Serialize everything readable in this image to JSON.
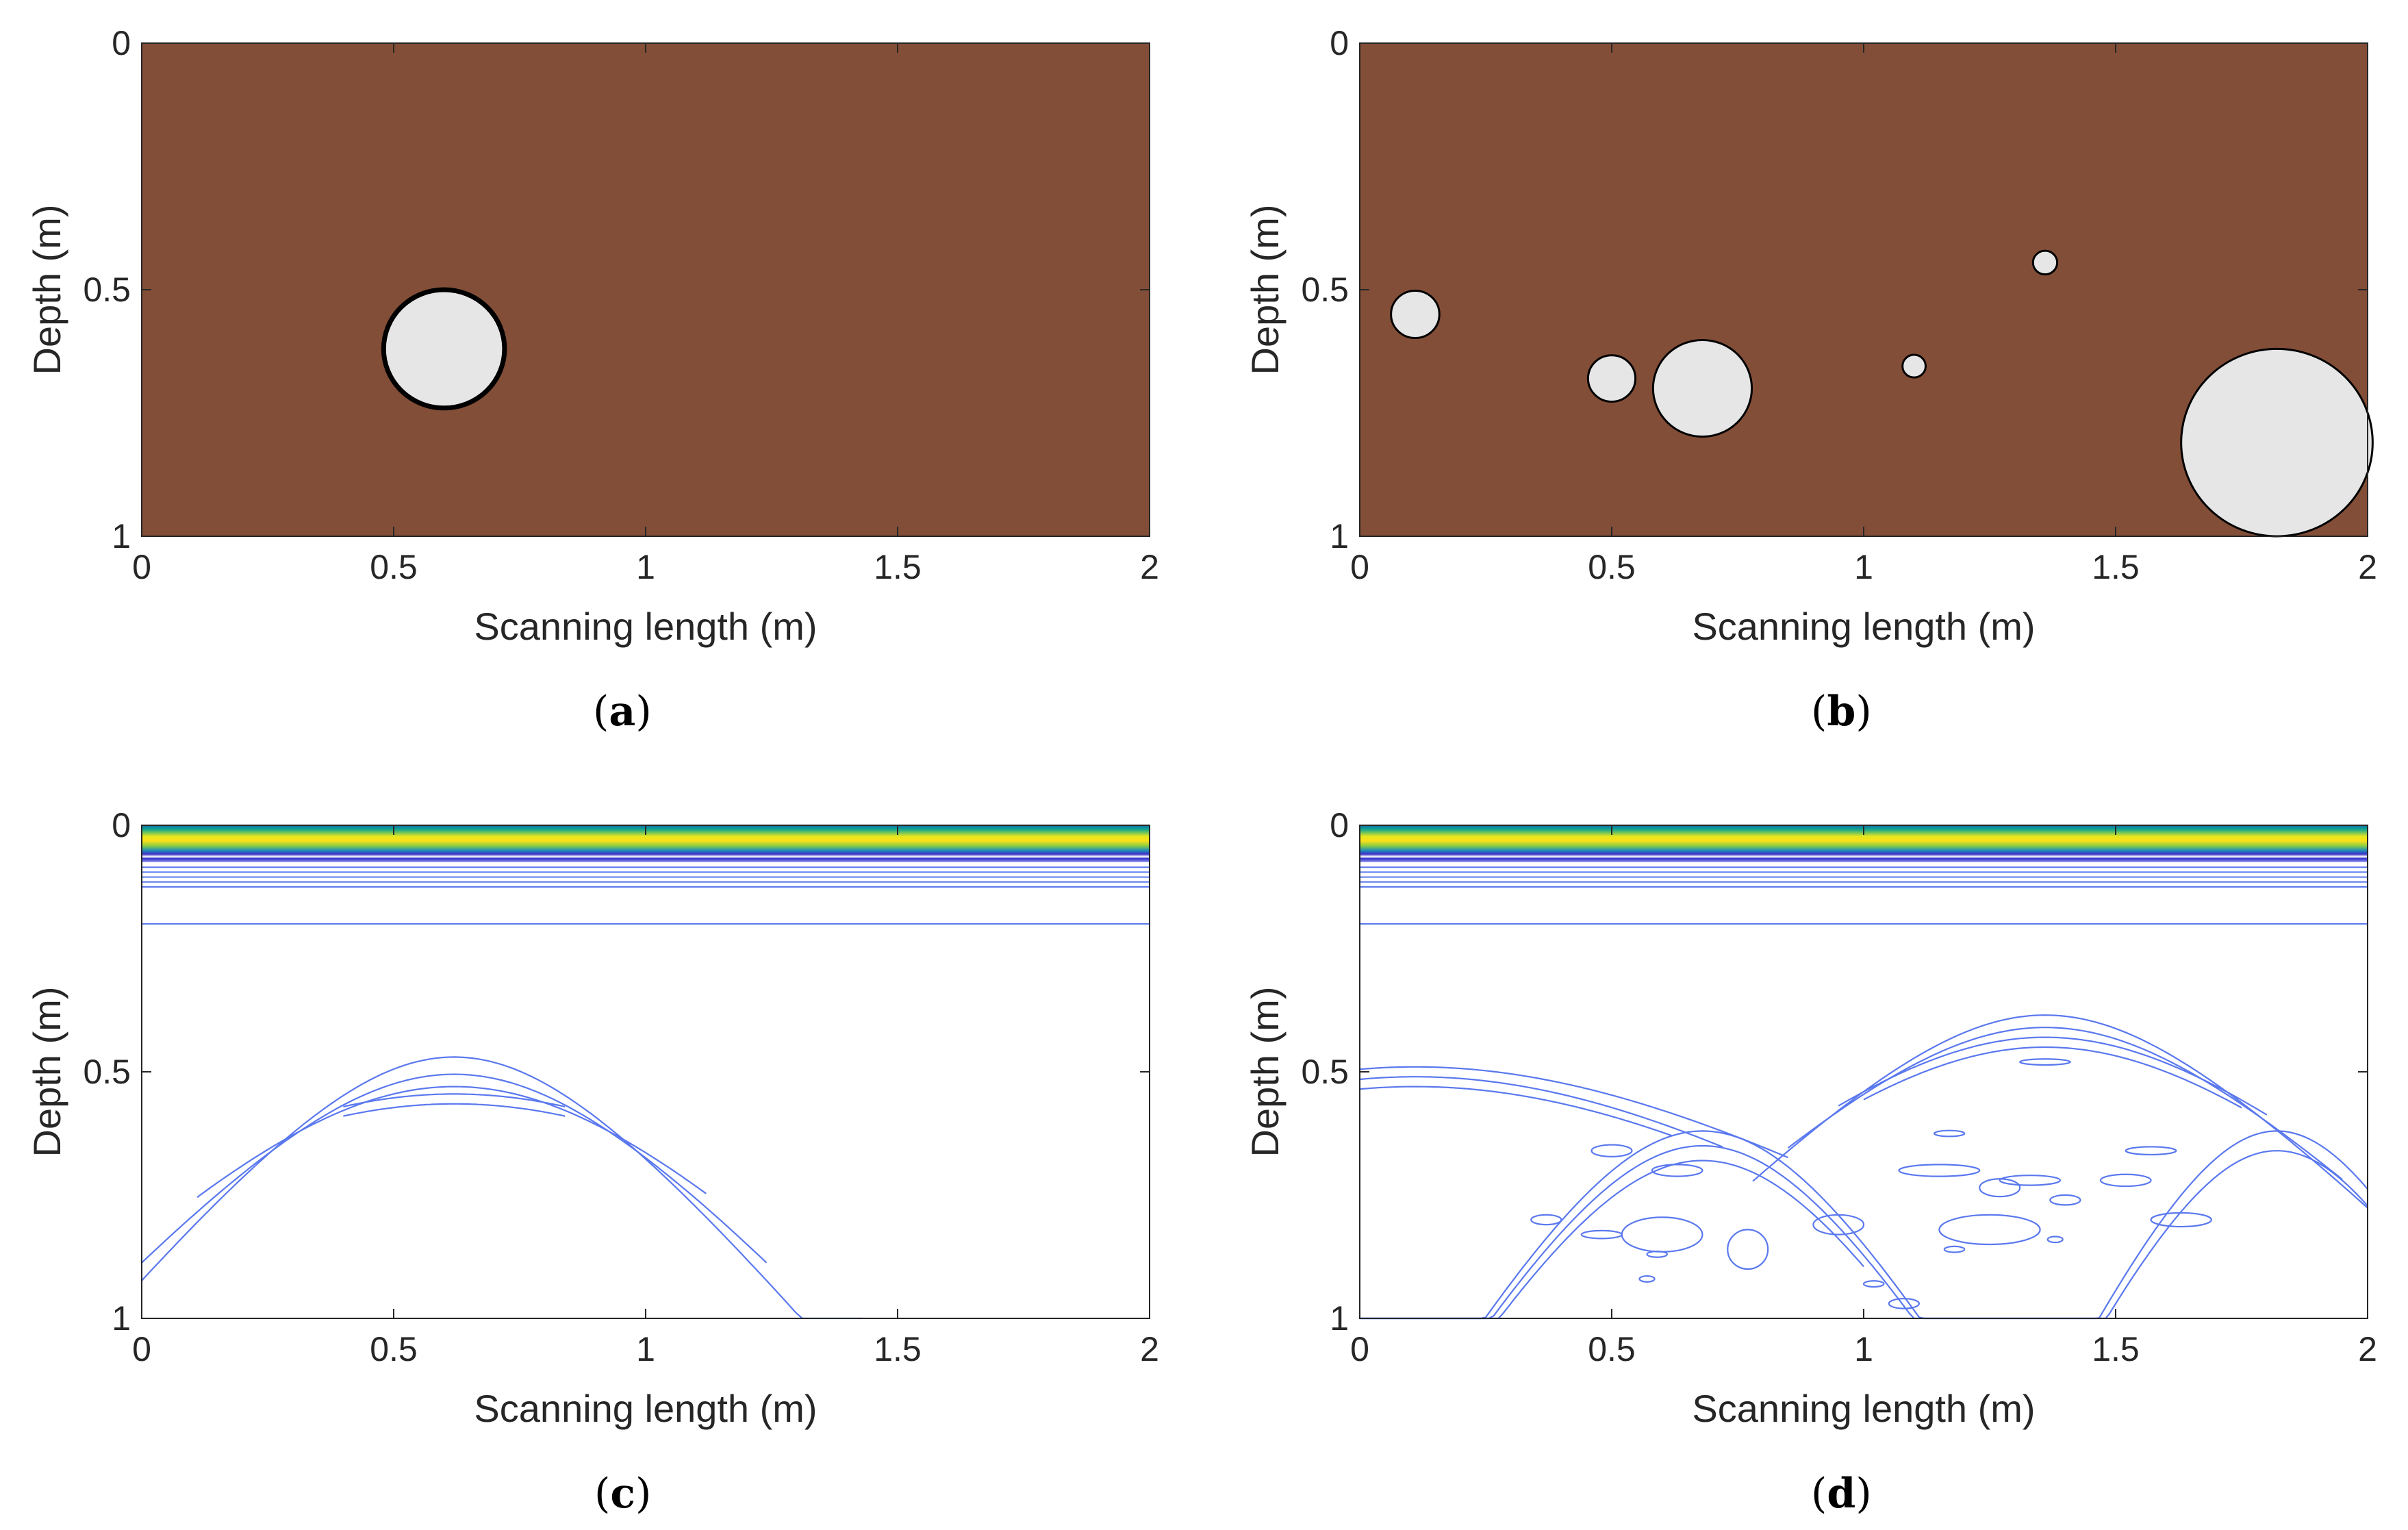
{
  "colors": {
    "soil": "#834e38",
    "void": "#e6e6e6",
    "outline": "#000000",
    "axis": "#262626",
    "contour": "#5a78ee",
    "bg": "#ffffff"
  },
  "chart_data": [
    {
      "id": "a",
      "type": "model",
      "caption": "a",
      "xlabel": "Scanning length (m)",
      "ylabel": "Depth (m)",
      "xlim": [
        0,
        2
      ],
      "ylim": [
        0,
        1
      ],
      "xticks": [
        {
          "v": 0,
          "label": "0"
        },
        {
          "v": 0.5,
          "label": "0.5"
        },
        {
          "v": 1,
          "label": "1"
        },
        {
          "v": 1.5,
          "label": "1.5"
        },
        {
          "v": 2,
          "label": "2"
        }
      ],
      "yticks": [
        {
          "v": 0,
          "label": "0"
        },
        {
          "v": 0.5,
          "label": "0.5"
        },
        {
          "v": 1,
          "label": "1"
        }
      ],
      "circles": [
        {
          "x": 0.6,
          "depth": 0.62,
          "r": 0.12,
          "thick": true
        }
      ]
    },
    {
      "id": "b",
      "type": "model",
      "caption": "b",
      "xlabel": "Scanning length (m)",
      "ylabel": "Depth (m)",
      "xlim": [
        0,
        2
      ],
      "ylim": [
        0,
        1
      ],
      "xticks": [
        {
          "v": 0,
          "label": "0"
        },
        {
          "v": 0.5,
          "label": "0.5"
        },
        {
          "v": 1,
          "label": "1"
        },
        {
          "v": 1.5,
          "label": "1.5"
        },
        {
          "v": 2,
          "label": "2"
        }
      ],
      "yticks": [
        {
          "v": 0,
          "label": "0"
        },
        {
          "v": 0.5,
          "label": "0.5"
        },
        {
          "v": 1,
          "label": "1"
        }
      ],
      "circles": [
        {
          "x": 0.11,
          "depth": 0.55,
          "r": 0.048
        },
        {
          "x": 0.5,
          "depth": 0.68,
          "r": 0.047
        },
        {
          "x": 0.68,
          "depth": 0.7,
          "r": 0.098
        },
        {
          "x": 1.1,
          "depth": 0.655,
          "r": 0.023
        },
        {
          "x": 1.36,
          "depth": 0.445,
          "r": 0.024
        },
        {
          "x": 1.82,
          "depth": 0.81,
          "r": 0.19
        }
      ]
    },
    {
      "id": "c",
      "type": "contour",
      "caption": "c",
      "xlabel": "Scanning length (m)",
      "ylabel": "Depth (m)",
      "xlim": [
        0,
        2
      ],
      "ylim": [
        0,
        1
      ],
      "xticks": [
        {
          "v": 0,
          "label": "0"
        },
        {
          "v": 0.5,
          "label": "0.5"
        },
        {
          "v": 1,
          "label": "1"
        },
        {
          "v": 1.5,
          "label": "1.5"
        },
        {
          "v": 2,
          "label": "2"
        }
      ],
      "yticks": [
        {
          "v": 0,
          "label": "0"
        },
        {
          "v": 0.5,
          "label": "0.5"
        },
        {
          "v": 1,
          "label": "1"
        }
      ],
      "hyperbolas": [
        {
          "x0": 0.62,
          "t0": 0.47,
          "v": 0.78,
          "xmin": 0.0,
          "xmax": 1.43
        },
        {
          "x0": 0.62,
          "t0": 0.505,
          "v": 0.85,
          "xmin": 0.0,
          "xmax": 1.24
        },
        {
          "x0": 0.62,
          "t0": 0.53,
          "v": 0.95,
          "xmin": 0.11,
          "xmax": 1.12
        },
        {
          "x0": 0.62,
          "t0": 0.545,
          "v": 1.3,
          "xmin": 0.4,
          "xmax": 0.84
        },
        {
          "x0": 0.62,
          "t0": 0.565,
          "v": 1.3,
          "xmin": 0.4,
          "xmax": 0.84
        }
      ]
    },
    {
      "id": "d",
      "type": "contour",
      "caption": "d",
      "xlabel": "Scanning length (m)",
      "ylabel": "Depth (m)",
      "xlim": [
        0,
        2
      ],
      "ylim": [
        0,
        1
      ],
      "xticks": [
        {
          "v": 0,
          "label": "0"
        },
        {
          "v": 0.5,
          "label": "0.5"
        },
        {
          "v": 1,
          "label": "1"
        },
        {
          "v": 1.5,
          "label": "1.5"
        },
        {
          "v": 2,
          "label": "2"
        }
      ],
      "yticks": [
        {
          "v": 0,
          "label": "0"
        },
        {
          "v": 0.5,
          "label": "0.5"
        },
        {
          "v": 1,
          "label": "1"
        }
      ],
      "hyperbolas": [
        {
          "x0": 1.36,
          "t0": 0.385,
          "v": 0.95,
          "xmin": 0.78,
          "xmax": 2.0
        },
        {
          "x0": 1.36,
          "t0": 0.41,
          "v": 1.0,
          "xmin": 0.85,
          "xmax": 1.95
        },
        {
          "x0": 1.36,
          "t0": 0.43,
          "v": 1.1,
          "xmin": 0.95,
          "xmax": 1.8
        },
        {
          "x0": 1.36,
          "t0": 0.45,
          "v": 1.1,
          "xmin": 1.0,
          "xmax": 1.75
        },
        {
          "x0": 0.11,
          "t0": 0.49,
          "v": 1.6,
          "xmin": 0.0,
          "xmax": 0.85
        },
        {
          "x0": 0.11,
          "t0": 0.51,
          "v": 1.5,
          "xmin": 0.0,
          "xmax": 0.72
        },
        {
          "x0": 0.11,
          "t0": 0.53,
          "v": 1.5,
          "xmin": 0.0,
          "xmax": 0.62
        },
        {
          "x0": 0.68,
          "t0": 0.62,
          "v": 0.55,
          "xmin": 0.0,
          "xmax": 1.2
        },
        {
          "x0": 0.68,
          "t0": 0.65,
          "v": 0.55,
          "xmin": 0.0,
          "xmax": 1.1
        },
        {
          "x0": 0.68,
          "t0": 0.68,
          "v": 0.55,
          "xmin": 0.0,
          "xmax": 1.0
        },
        {
          "x0": 1.82,
          "t0": 0.62,
          "v": 0.45,
          "xmin": 1.1,
          "xmax": 2.0
        },
        {
          "x0": 1.82,
          "t0": 0.66,
          "v": 0.45,
          "xmin": 1.2,
          "xmax": 2.0
        }
      ],
      "blobs": [
        {
          "x": 0.5,
          "depth": 0.66,
          "rx": 0.04,
          "ry": 0.012
        },
        {
          "x": 0.63,
          "depth": 0.7,
          "rx": 0.05,
          "ry": 0.012
        },
        {
          "x": 1.27,
          "depth": 0.735,
          "rx": 0.04,
          "ry": 0.018
        },
        {
          "x": 1.33,
          "depth": 0.72,
          "rx": 0.06,
          "ry": 0.01
        },
        {
          "x": 1.36,
          "depth": 0.48,
          "rx": 0.05,
          "ry": 0.006
        },
        {
          "x": 0.37,
          "depth": 0.8,
          "rx": 0.03,
          "ry": 0.01
        },
        {
          "x": 0.6,
          "depth": 0.83,
          "rx": 0.08,
          "ry": 0.035
        },
        {
          "x": 0.48,
          "depth": 0.83,
          "rx": 0.04,
          "ry": 0.008
        },
        {
          "x": 0.95,
          "depth": 0.81,
          "rx": 0.05,
          "ry": 0.02
        },
        {
          "x": 0.77,
          "depth": 0.86,
          "rx": 0.04,
          "ry": 0.04
        },
        {
          "x": 1.25,
          "depth": 0.82,
          "rx": 0.1,
          "ry": 0.03
        },
        {
          "x": 1.15,
          "depth": 0.7,
          "rx": 0.08,
          "ry": 0.012
        },
        {
          "x": 1.63,
          "depth": 0.8,
          "rx": 0.06,
          "ry": 0.014
        },
        {
          "x": 1.57,
          "depth": 0.66,
          "rx": 0.05,
          "ry": 0.008
        },
        {
          "x": 1.17,
          "depth": 0.625,
          "rx": 0.03,
          "ry": 0.006
        },
        {
          "x": 1.52,
          "depth": 0.72,
          "rx": 0.05,
          "ry": 0.012
        },
        {
          "x": 1.4,
          "depth": 0.76,
          "rx": 0.03,
          "ry": 0.01
        },
        {
          "x": 1.02,
          "depth": 0.93,
          "rx": 0.02,
          "ry": 0.006
        },
        {
          "x": 1.08,
          "depth": 0.97,
          "rx": 0.03,
          "ry": 0.01
        },
        {
          "x": 0.59,
          "depth": 0.87,
          "rx": 0.02,
          "ry": 0.006
        },
        {
          "x": 0.57,
          "depth": 0.92,
          "rx": 0.015,
          "ry": 0.006
        },
        {
          "x": 1.18,
          "depth": 0.86,
          "rx": 0.02,
          "ry": 0.006
        },
        {
          "x": 1.38,
          "depth": 0.84,
          "rx": 0.015,
          "ry": 0.006
        }
      ]
    }
  ]
}
